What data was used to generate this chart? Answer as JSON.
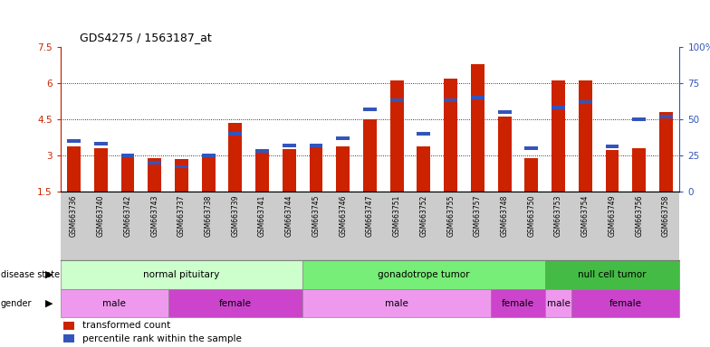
{
  "title": "GDS4275 / 1563187_at",
  "samples": [
    "GSM663736",
    "GSM663740",
    "GSM663742",
    "GSM663743",
    "GSM663737",
    "GSM663738",
    "GSM663739",
    "GSM663741",
    "GSM663744",
    "GSM663745",
    "GSM663746",
    "GSM663747",
    "GSM663751",
    "GSM663752",
    "GSM663755",
    "GSM663757",
    "GSM663748",
    "GSM663750",
    "GSM663753",
    "GSM663754",
    "GSM663749",
    "GSM663756",
    "GSM663758"
  ],
  "transformed_count": [
    3.35,
    3.28,
    3.05,
    2.88,
    2.83,
    3.05,
    4.35,
    3.18,
    3.27,
    3.38,
    3.38,
    4.5,
    6.12,
    3.38,
    6.2,
    6.8,
    4.6,
    2.88,
    6.1,
    6.1,
    3.22,
    3.28,
    4.8
  ],
  "percentile_rank": [
    35,
    33,
    25,
    20,
    17,
    25,
    40,
    28,
    32,
    32,
    37,
    57,
    63,
    40,
    63,
    65,
    55,
    30,
    58,
    62,
    31,
    50,
    52
  ],
  "y_min": 1.5,
  "y_max": 7.5,
  "left_ticks": [
    1.5,
    3.0,
    4.5,
    6.0,
    7.5
  ],
  "left_tick_labels": [
    "1.5",
    "3",
    "4.5",
    "6",
    "7.5"
  ],
  "right_ticks": [
    0,
    25,
    50,
    75,
    100
  ],
  "right_tick_labels": [
    "0",
    "25",
    "50",
    "75",
    "100%"
  ],
  "bar_color_red": "#cc2200",
  "bar_color_blue": "#3355bb",
  "tick_area_color": "#cccccc",
  "disease_state_groups": [
    {
      "label": "normal pituitary",
      "start": 0,
      "end": 9,
      "color": "#ccffcc"
    },
    {
      "label": "gonadotrope tumor",
      "start": 9,
      "end": 18,
      "color": "#77ee77"
    },
    {
      "label": "null cell tumor",
      "start": 18,
      "end": 23,
      "color": "#44bb44"
    }
  ],
  "gender_groups": [
    {
      "label": "male",
      "start": 0,
      "end": 4,
      "color": "#ee99ee"
    },
    {
      "label": "female",
      "start": 4,
      "end": 9,
      "color": "#cc44cc"
    },
    {
      "label": "male",
      "start": 9,
      "end": 16,
      "color": "#ee99ee"
    },
    {
      "label": "female",
      "start": 16,
      "end": 18,
      "color": "#cc44cc"
    },
    {
      "label": "male",
      "start": 18,
      "end": 19,
      "color": "#ee99ee"
    },
    {
      "label": "female",
      "start": 19,
      "end": 23,
      "color": "#cc44cc"
    }
  ],
  "legend_items": [
    {
      "label": "transformed count",
      "color": "#cc2200"
    },
    {
      "label": "percentile rank within the sample",
      "color": "#3355bb"
    }
  ],
  "dotted_lines": [
    3.0,
    4.5,
    6.0
  ],
  "bar_width": 0.5,
  "blue_bar_height": 0.15
}
